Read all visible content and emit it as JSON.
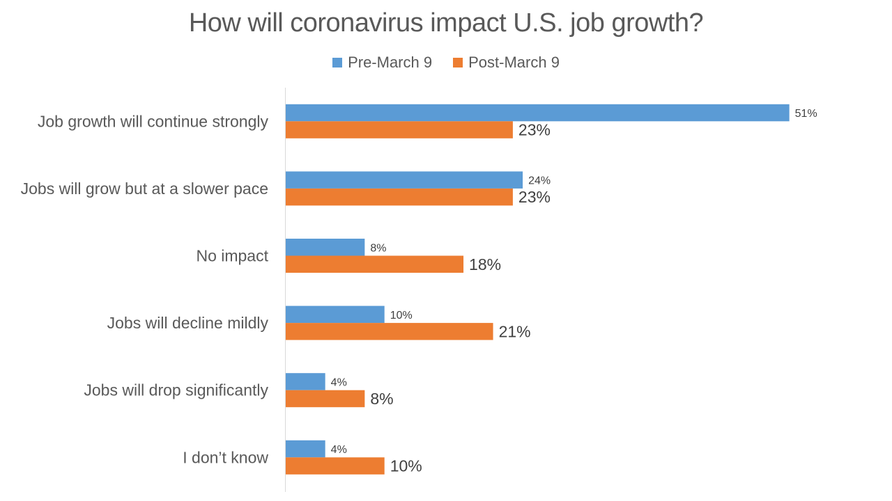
{
  "chart_data": {
    "type": "bar",
    "orientation": "horizontal",
    "title": "How will coronavirus impact U.S. job growth?",
    "xlabel": "",
    "ylabel": "",
    "xlim": [
      0,
      55
    ],
    "grid": false,
    "legend_position": "top",
    "categories": [
      "Job growth will continue strongly",
      "Jobs will grow but at a slower pace",
      "No impact",
      "Jobs will decline mildly",
      "Jobs will drop significantly",
      "I don’t know"
    ],
    "series": [
      {
        "name": "Pre-March 9",
        "color": "#5B9BD5",
        "values": [
          51,
          24,
          8,
          10,
          4,
          4
        ],
        "labels": [
          "51%",
          "24%",
          "8%",
          "10%",
          "4%",
          "4%"
        ]
      },
      {
        "name": "Post-March 9",
        "color": "#ED7D31",
        "values": [
          23,
          23,
          18,
          21,
          8,
          10
        ],
        "labels": [
          "23%",
          "23%",
          "18%",
          "21%",
          "8%",
          "10%"
        ]
      }
    ]
  }
}
